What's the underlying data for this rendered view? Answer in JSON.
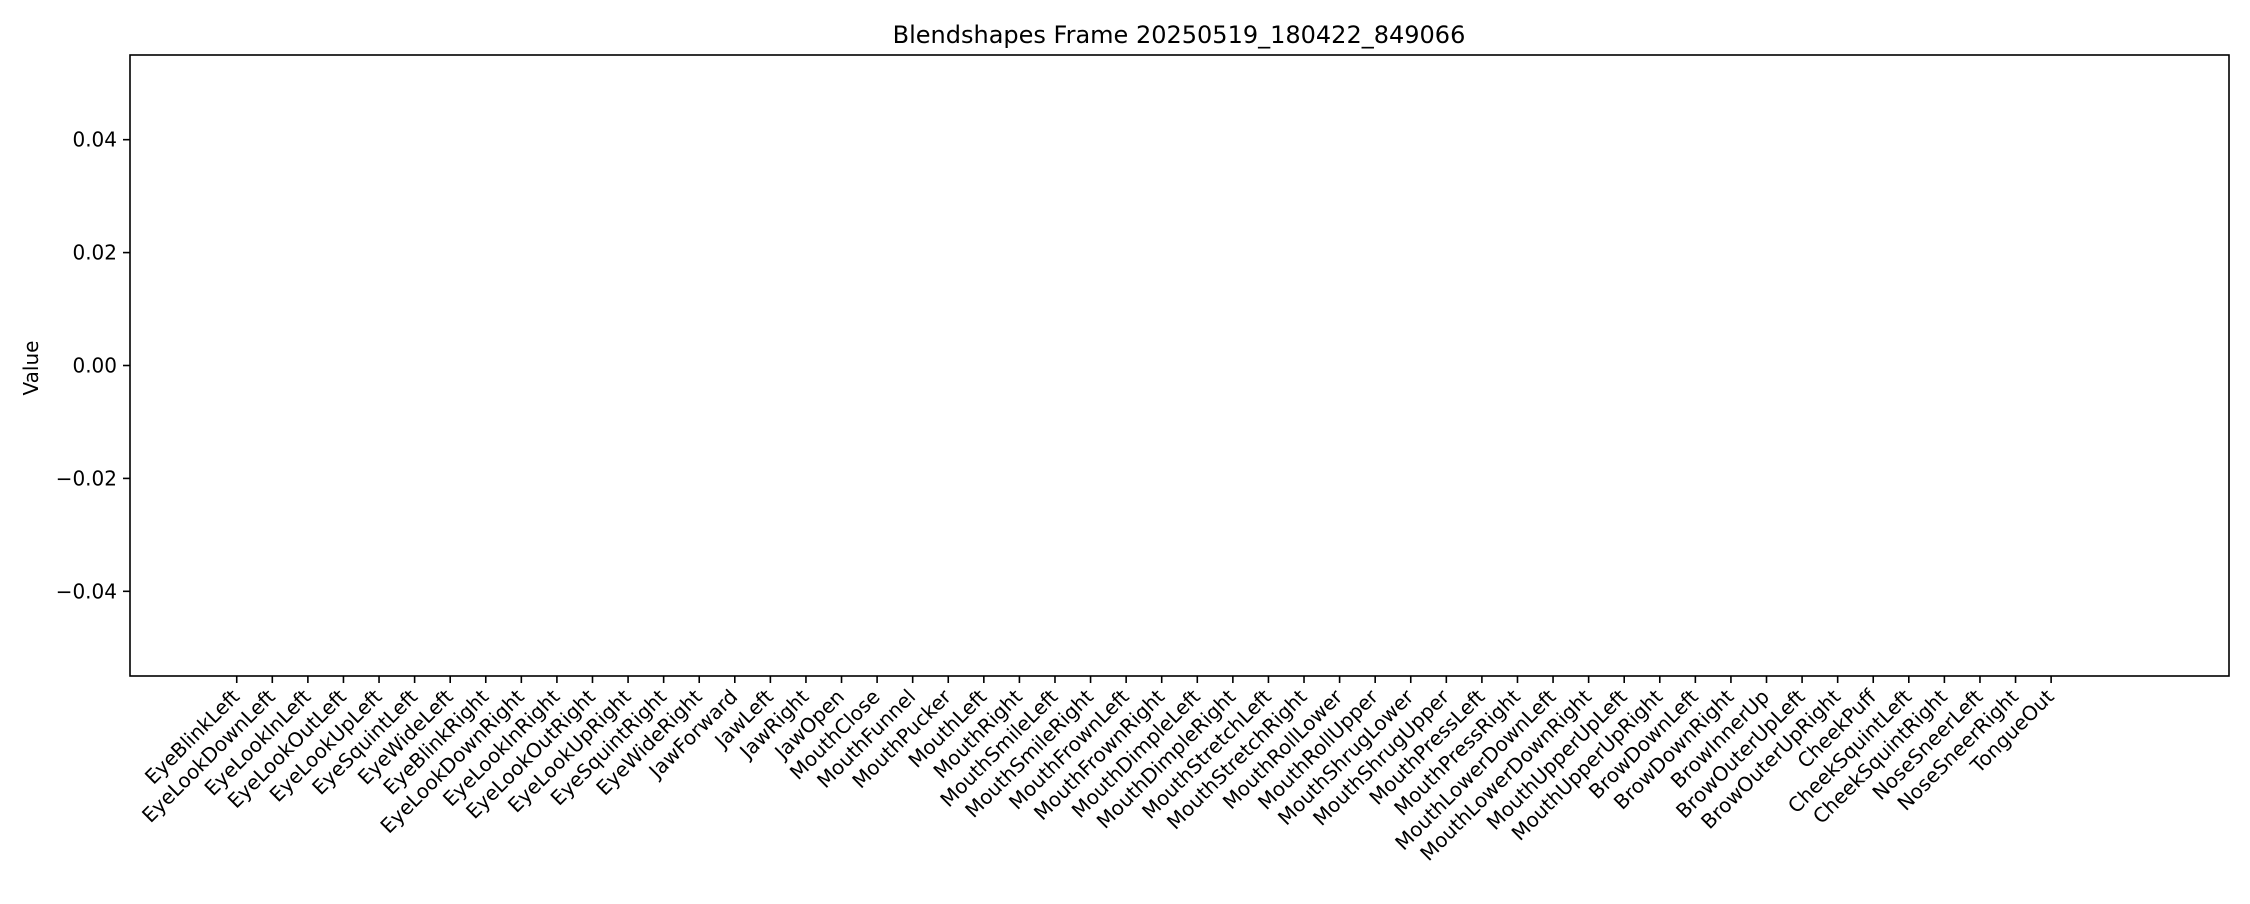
{
  "chart_data": {
    "type": "bar",
    "title": "Blendshapes Frame 20250519_180422_849066",
    "xlabel": "",
    "ylabel": "Value",
    "ylim": [
      -0.055,
      0.055
    ],
    "yticks": [
      0.04,
      0.02,
      0.0,
      -0.02,
      -0.04
    ],
    "ytick_labels": [
      "0.04",
      "0.02",
      "0.00",
      "−0.02",
      "−0.04"
    ],
    "grid": false,
    "categories": [
      "EyeBlinkLeft",
      "EyeLookDownLeft",
      "EyeLookInLeft",
      "EyeLookOutLeft",
      "EyeLookUpLeft",
      "EyeSquintLeft",
      "EyeWideLeft",
      "EyeBlinkRight",
      "EyeLookDownRight",
      "EyeLookInRight",
      "EyeLookOutRight",
      "EyeLookUpRight",
      "EyeSquintRight",
      "EyeWideRight",
      "JawForward",
      "JawLeft",
      "JawRight",
      "JawOpen",
      "MouthClose",
      "MouthFunnel",
      "MouthPucker",
      "MouthLeft",
      "MouthRight",
      "MouthSmileLeft",
      "MouthSmileRight",
      "MouthFrownLeft",
      "MouthFrownRight",
      "MouthDimpleLeft",
      "MouthDimpleRight",
      "MouthStretchLeft",
      "MouthStretchRight",
      "MouthRollLower",
      "MouthRollUpper",
      "MouthShrugLower",
      "MouthShrugUpper",
      "MouthPressLeft",
      "MouthPressRight",
      "MouthLowerDownLeft",
      "MouthLowerDownRight",
      "MouthUpperUpLeft",
      "MouthUpperUpRight",
      "BrowDownLeft",
      "BrowDownRight",
      "BrowInnerUp",
      "BrowOuterUpLeft",
      "BrowOuterUpRight",
      "CheekPuff",
      "CheekSquintLeft",
      "CheekSquintRight",
      "NoseSneerLeft",
      "NoseSneerRight",
      "TongueOut"
    ],
    "values": [
      0,
      0,
      0,
      0,
      0,
      0,
      0,
      0,
      0,
      0,
      0,
      0,
      0,
      0,
      0,
      0,
      0,
      0,
      0,
      0,
      0,
      0,
      0,
      0,
      0,
      0,
      0,
      0,
      0,
      0,
      0,
      0,
      0,
      0,
      0,
      0,
      0,
      0,
      0,
      0,
      0,
      0,
      0,
      0,
      0,
      0,
      0,
      0,
      0,
      0,
      0,
      0
    ],
    "x_range": [
      -3,
      56
    ],
    "bar_color": "#1f77b4"
  }
}
